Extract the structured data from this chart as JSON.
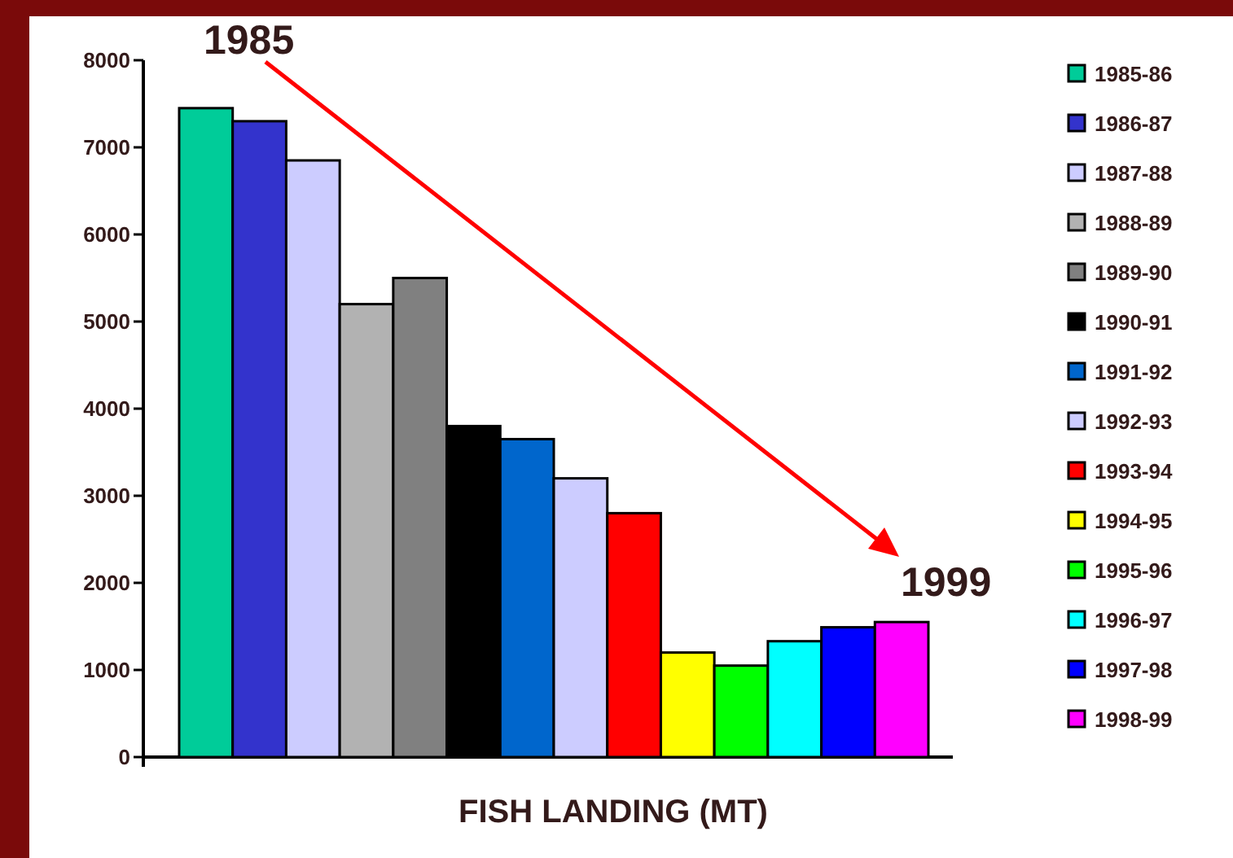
{
  "chart_data": {
    "type": "bar",
    "xlabel": "FISH LANDING (MT)",
    "categories": [
      null
    ],
    "series": [
      {
        "name": "1985-86",
        "color": "#00cc99",
        "values": [
          7450
        ]
      },
      {
        "name": "1986-87",
        "color": "#3333cc",
        "values": [
          7300
        ]
      },
      {
        "name": "1987-88",
        "color": "#ccccff",
        "values": [
          6850
        ]
      },
      {
        "name": "1988-89",
        "color": "#b2b2b2",
        "values": [
          5200
        ]
      },
      {
        "name": "1989-90",
        "color": "#808080",
        "values": [
          5500
        ]
      },
      {
        "name": "1990-91",
        "color": "#000000",
        "values": [
          3800
        ]
      },
      {
        "name": "1991-92",
        "color": "#0066cc",
        "values": [
          3650
        ]
      },
      {
        "name": "1992-93",
        "color": "#ccccff",
        "values": [
          3200
        ]
      },
      {
        "name": "1993-94",
        "color": "#ff0000",
        "values": [
          2800
        ]
      },
      {
        "name": "1994-95",
        "color": "#ffff00",
        "values": [
          1200
        ]
      },
      {
        "name": "1995-96",
        "color": "#00ff00",
        "values": [
          1050
        ]
      },
      {
        "name": "1996-97",
        "color": "#00ffff",
        "values": [
          1330
        ]
      },
      {
        "name": "1997-98",
        "color": "#0000ff",
        "values": [
          1490
        ]
      },
      {
        "name": "1998-99",
        "color": "#ff00ff",
        "values": [
          1550
        ]
      }
    ],
    "ylim": [
      0,
      8000
    ],
    "yticks": [
      0,
      1000,
      2000,
      3000,
      4000,
      5000,
      6000,
      7000,
      8000
    ],
    "tick_labels": "y",
    "legend": "right",
    "grid": false,
    "annotations": [
      "1985",
      "1999"
    ]
  }
}
